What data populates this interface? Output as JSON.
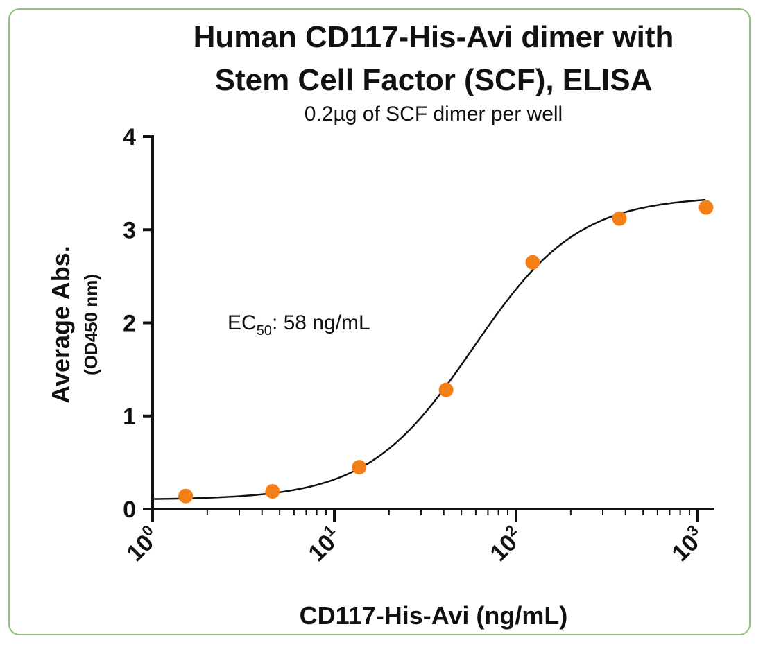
{
  "chart_data": {
    "type": "scatter",
    "title_line1": "Human CD117-His-Avi dimer with",
    "title_line2": "Stem Cell Factor (SCF), ELISA",
    "subtitle": "0.2µg of SCF dimer per well",
    "ylabel": "Average Abs.",
    "ylabel_sub": "(OD450 nm)",
    "xlabel": "CD117-His-Avi  (ng/mL)",
    "xscale": "log",
    "xlim": [
      1,
      1100
    ],
    "ylim": [
      0,
      4
    ],
    "yticks": [
      "0",
      "1",
      "2",
      "3",
      "4"
    ],
    "xticks": [
      {
        "base": "10",
        "exp": "0",
        "value": 1
      },
      {
        "base": "10",
        "exp": "1",
        "value": 10
      },
      {
        "base": "10",
        "exp": "2",
        "value": 100
      },
      {
        "base": "10",
        "exp": "3",
        "value": 1000
      }
    ],
    "annotation": {
      "prefix": "EC",
      "subscript": "50",
      "suffix": ": 58 ng/mL"
    },
    "series": [
      {
        "x": [
          1.52,
          4.57,
          13.7,
          41.2,
          123.5,
          370.4,
          1111
        ],
        "y": [
          0.14,
          0.19,
          0.45,
          1.28,
          2.65,
          3.12,
          3.24
        ]
      }
    ],
    "fit": {
      "bottom": 0.1,
      "top": 3.36,
      "ec50": 58,
      "hill": 1.5
    },
    "colors": {
      "points": "#f57f17",
      "curve": "#111111",
      "frame": "#8cc67a"
    }
  }
}
